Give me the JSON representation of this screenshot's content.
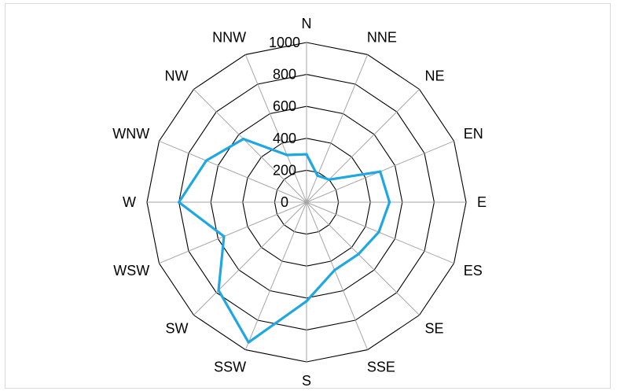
{
  "chart_data": {
    "type": "radar",
    "title": "",
    "categories": [
      "N",
      "NNE",
      "NE",
      "EN",
      "E",
      "ES",
      "SE",
      "SSE",
      "S",
      "SSW",
      "SW",
      "WSW",
      "W",
      "WNW",
      "NW",
      "NNW"
    ],
    "series": [
      {
        "values": [
          300,
          180,
          200,
          500,
          520,
          490,
          460,
          460,
          620,
          950,
          780,
          560,
          800,
          680,
          560,
          320
        ]
      }
    ],
    "radial_ticks": [
      "0",
      "200",
      "400",
      "600",
      "800",
      "1000"
    ],
    "rmax": 1000,
    "grid": true,
    "legend": "none",
    "colors": {
      "series": "#1ea7e1",
      "grid": "#000000",
      "spokes": "#a6a6a6"
    }
  }
}
